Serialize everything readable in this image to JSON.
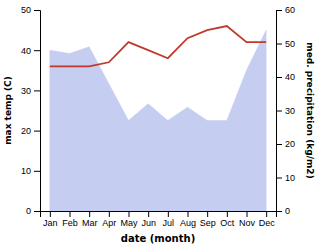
{
  "chart_data": {
    "type": "line",
    "xlabel": "date (month)",
    "ylabel": "max temp (C)",
    "y2label": "med. precipitation (kg/m2)",
    "categories": [
      "Jan",
      "Feb",
      "Mar",
      "Apr",
      "May",
      "Jun",
      "Jul",
      "Aug",
      "Sep",
      "Oct",
      "Nov",
      "Dec"
    ],
    "series": [
      {
        "type": "area",
        "axis": "y2",
        "color": "#c5cdf0",
        "values": [
          48,
          47,
          49,
          38,
          27,
          32,
          27,
          31,
          27,
          27,
          42,
          54
        ]
      },
      {
        "type": "line",
        "color": "#c0392b",
        "values": [
          36,
          36,
          36,
          37,
          42,
          40,
          38,
          43,
          45,
          46,
          42,
          42
        ]
      }
    ],
    "ylim": [
      0,
      50
    ],
    "yticks": [
      0,
      10,
      20,
      30,
      40,
      50
    ],
    "y2lim": [
      0,
      60
    ],
    "y2ticks": [
      0,
      10,
      20,
      30,
      40,
      50,
      60
    ]
  }
}
